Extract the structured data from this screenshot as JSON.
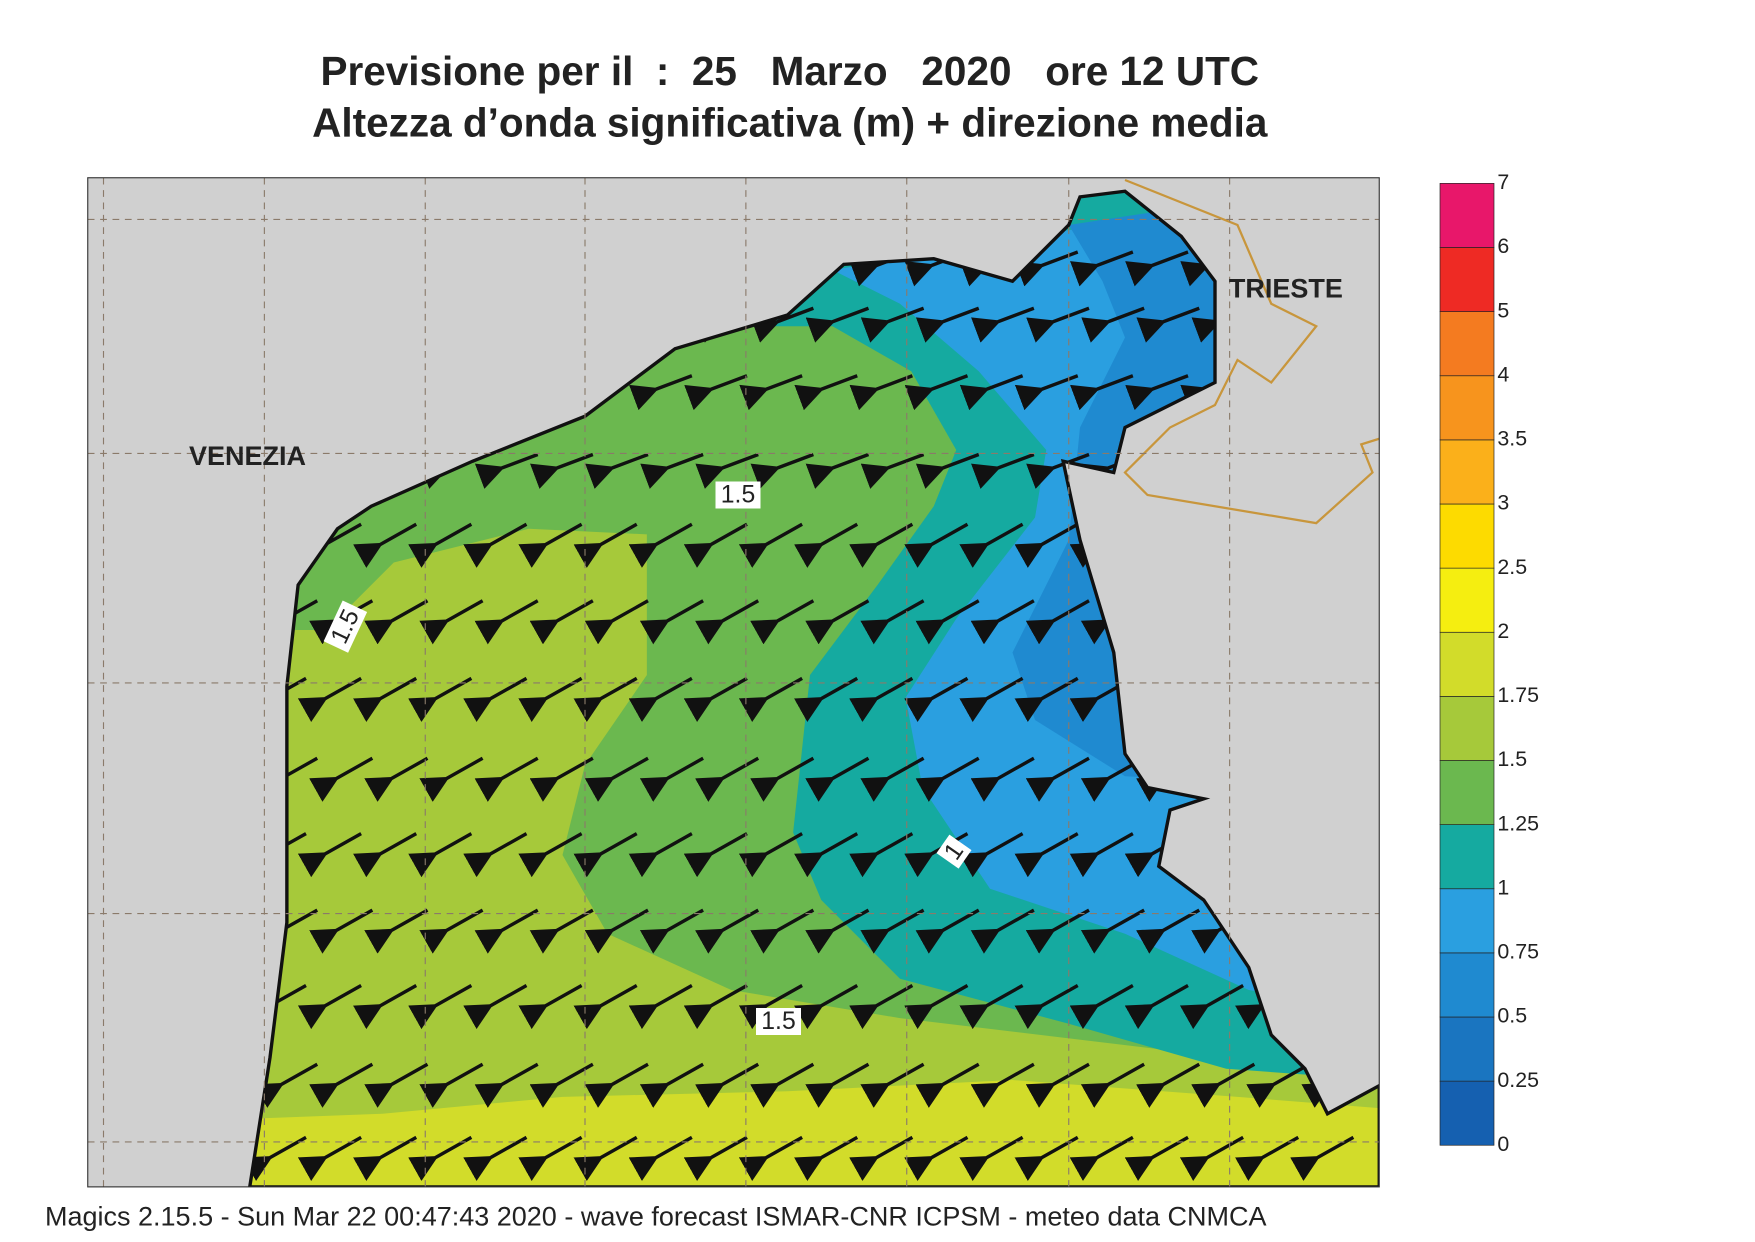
{
  "header": {
    "title_lines": [
      "Previsione per il  :  25   Marzo   2020   ore 12 UTC",
      "Altezza d’onda significativa (m) + direzione media"
    ]
  },
  "map": {
    "place_labels": [
      "VENEZIA",
      "TRIESTE"
    ],
    "contour_labels": [
      "1.5",
      "1.5",
      "1",
      "1.5"
    ]
  },
  "colorbar": {
    "levels": [
      0,
      0.25,
      0.5,
      0.75,
      1,
      1.25,
      1.5,
      1.75,
      2,
      2.5,
      3,
      3.5,
      4,
      5,
      6,
      7
    ],
    "colors": [
      "#1560b0",
      "#1a75c0",
      "#1f8ad0",
      "#2a9fe0",
      "#15aaa0",
      "#6bb84f",
      "#a6c93a",
      "#d2dc2a",
      "#f5ee10",
      "#fddb00",
      "#fbb01a",
      "#f7941d",
      "#f47b20",
      "#ee2a24",
      "#e8176a"
    ]
  },
  "footer": "Magics 2.15.5 - Sun Mar 22 00:47:43 2020 - wave forecast  ISMAR-CNR  ICPSM - meteo data   CNMCA"
}
